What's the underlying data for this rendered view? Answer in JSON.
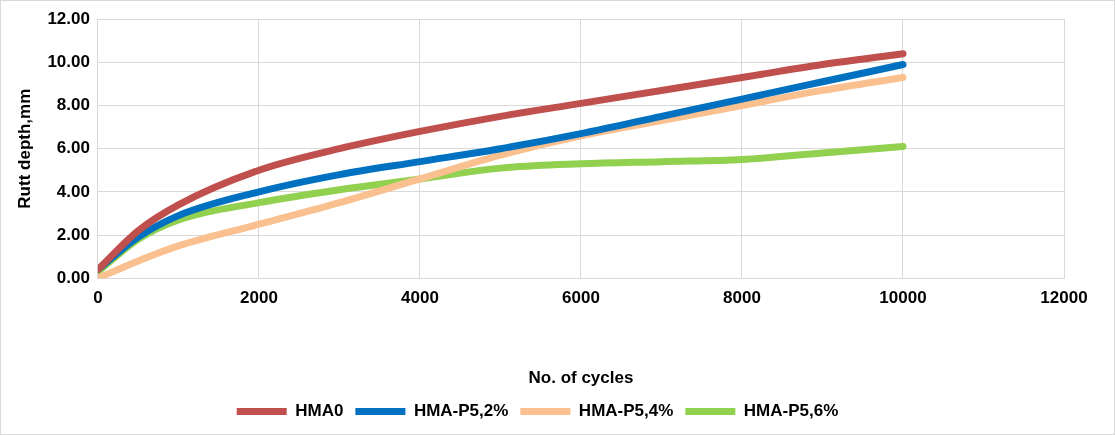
{
  "chart_data": {
    "type": "line",
    "xlabel": "No. of cycles",
    "ylabel": "Rutt depth,mm",
    "x": [
      0,
      500,
      1000,
      2000,
      3000,
      4000,
      5000,
      6000,
      7000,
      8000,
      9000,
      10000
    ],
    "series": [
      {
        "name": "HMA0",
        "color": "#c0504d",
        "values": [
          0.4,
          2.2,
          3.4,
          5.0,
          6.0,
          6.8,
          7.5,
          8.1,
          8.7,
          9.3,
          9.9,
          10.4
        ]
      },
      {
        "name": "HMA-P5,2%",
        "color": "#0070c0",
        "values": [
          0.4,
          1.9,
          2.9,
          4.0,
          4.8,
          5.4,
          6.0,
          6.7,
          7.5,
          8.3,
          9.1,
          9.9
        ]
      },
      {
        "name": "HMA-P5,4%",
        "color": "#fac090",
        "values": [
          0.0,
          0.8,
          1.5,
          2.5,
          3.5,
          4.6,
          5.7,
          6.6,
          7.3,
          8.0,
          8.7,
          9.3
        ]
      },
      {
        "name": "HMA-P5,6%",
        "color": "#92d050",
        "values": [
          0.3,
          1.8,
          2.7,
          3.5,
          4.1,
          4.6,
          5.1,
          5.3,
          5.4,
          5.5,
          5.8,
          6.1
        ]
      }
    ],
    "xlim": [
      0,
      12000
    ],
    "xticks": [
      0,
      2000,
      4000,
      6000,
      8000,
      10000,
      12000
    ],
    "ylim": [
      0,
      12
    ],
    "yticks": [
      {
        "value": 0,
        "label": "0.00"
      },
      {
        "value": 2,
        "label": "2.00"
      },
      {
        "value": 4,
        "label": "4.00"
      },
      {
        "value": 6,
        "label": "6.00"
      },
      {
        "value": 8,
        "label": "8.00"
      },
      {
        "value": 10,
        "label": "10.00"
      },
      {
        "value": 12,
        "label": "12.00"
      }
    ],
    "grid": true,
    "legend": "bottom",
    "marker": "none",
    "line_style": "solid"
  }
}
